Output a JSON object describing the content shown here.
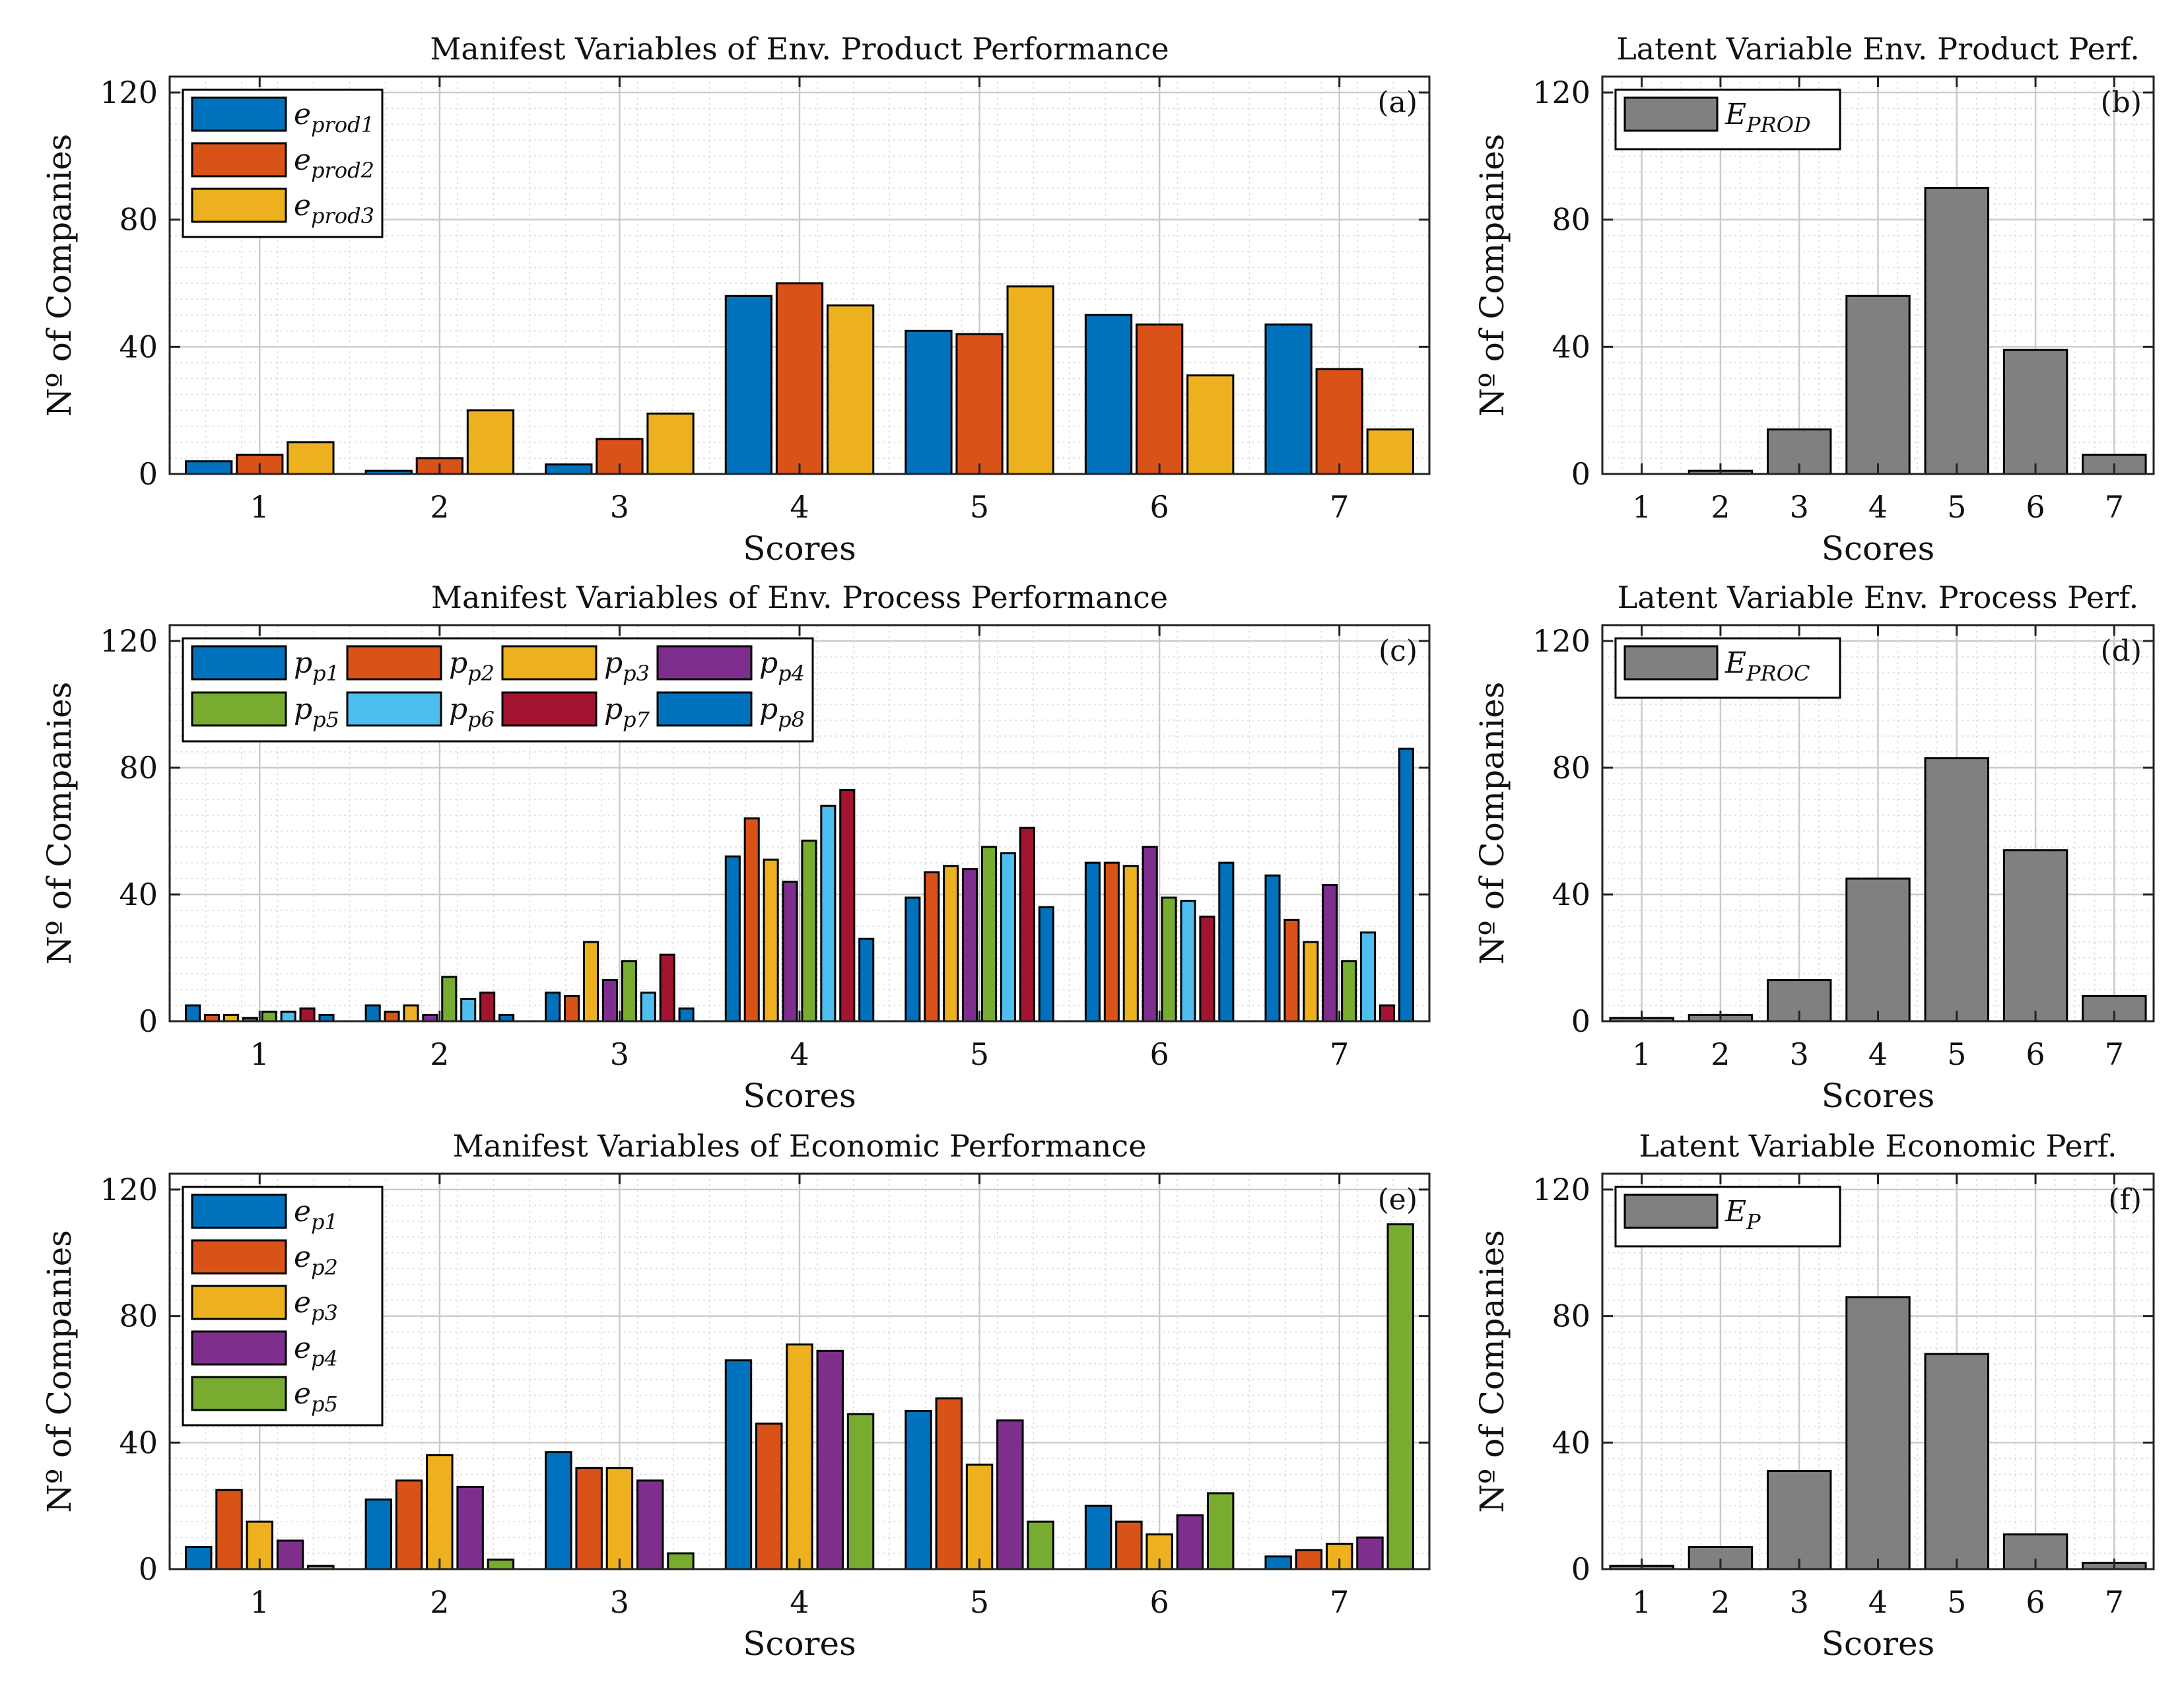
{
  "colors": {
    "blue": "#0072BD",
    "orange": "#D95319",
    "yellow": "#EDB120",
    "purple": "#7E2F8E",
    "green": "#77AC30",
    "cyan": "#4DBEEE",
    "red": "#A2142F",
    "gray": "#808080"
  },
  "chart_data": [
    {
      "id": "a",
      "type": "bar",
      "title": "Manifest Variables of Env. Product Performance",
      "panel_label": "(a)",
      "xlabel": "Scores",
      "ylabel": "Nº of Companies",
      "categories": [
        "1",
        "2",
        "3",
        "4",
        "5",
        "6",
        "7"
      ],
      "yticks": [
        "0",
        "40",
        "80",
        "120"
      ],
      "ylim": [
        0,
        125
      ],
      "legend_columns": 1,
      "series": [
        {
          "name": "e",
          "sub": "prod1",
          "color_key": "blue",
          "values": [
            4,
            1,
            3,
            56,
            45,
            50,
            47
          ]
        },
        {
          "name": "e",
          "sub": "prod2",
          "color_key": "orange",
          "values": [
            6,
            5,
            11,
            60,
            44,
            47,
            33
          ]
        },
        {
          "name": "e",
          "sub": "prod3",
          "color_key": "yellow",
          "values": [
            10,
            20,
            19,
            53,
            59,
            31,
            14
          ]
        }
      ]
    },
    {
      "id": "b",
      "type": "bar",
      "title": "Latent Variable Env. Product Perf.",
      "panel_label": "(b)",
      "xlabel": "Scores",
      "ylabel": "Nº of Companies",
      "categories": [
        "1",
        "2",
        "3",
        "4",
        "5",
        "6",
        "7"
      ],
      "yticks": [
        "0",
        "40",
        "80",
        "120"
      ],
      "ylim": [
        0,
        125
      ],
      "legend_columns": 1,
      "series": [
        {
          "name": "E",
          "sub": "PROD",
          "color_key": "gray",
          "values": [
            0,
            1,
            14,
            56,
            90,
            39,
            6
          ]
        }
      ]
    },
    {
      "id": "c",
      "type": "bar",
      "title": "Manifest Variables of Env. Process Performance",
      "panel_label": "(c)",
      "xlabel": "Scores",
      "ylabel": "Nº of Companies",
      "categories": [
        "1",
        "2",
        "3",
        "4",
        "5",
        "6",
        "7"
      ],
      "yticks": [
        "0",
        "40",
        "80",
        "120"
      ],
      "ylim": [
        0,
        125
      ],
      "legend_columns": 4,
      "series": [
        {
          "name": "p",
          "sub": "p1",
          "color_key": "blue",
          "values": [
            5,
            5,
            9,
            52,
            39,
            50,
            46
          ]
        },
        {
          "name": "p",
          "sub": "p2",
          "color_key": "orange",
          "values": [
            2,
            3,
            8,
            64,
            47,
            50,
            32
          ]
        },
        {
          "name": "p",
          "sub": "p3",
          "color_key": "yellow",
          "values": [
            2,
            5,
            25,
            51,
            49,
            49,
            25
          ]
        },
        {
          "name": "p",
          "sub": "p4",
          "color_key": "purple",
          "values": [
            1,
            2,
            13,
            44,
            48,
            55,
            43
          ]
        },
        {
          "name": "p",
          "sub": "p5",
          "color_key": "green",
          "values": [
            3,
            14,
            19,
            57,
            55,
            39,
            19
          ]
        },
        {
          "name": "p",
          "sub": "p6",
          "color_key": "cyan",
          "values": [
            3,
            7,
            9,
            68,
            53,
            38,
            28
          ]
        },
        {
          "name": "p",
          "sub": "p7",
          "color_key": "red",
          "values": [
            4,
            9,
            21,
            73,
            61,
            33,
            5
          ]
        },
        {
          "name": "p",
          "sub": "p8",
          "color_key": "blue",
          "values": [
            2,
            2,
            4,
            26,
            36,
            50,
            86
          ]
        }
      ]
    },
    {
      "id": "d",
      "type": "bar",
      "title": "Latent Variable Env. Process Perf.",
      "panel_label": "(d)",
      "xlabel": "Scores",
      "ylabel": "Nº of Companies",
      "categories": [
        "1",
        "2",
        "3",
        "4",
        "5",
        "6",
        "7"
      ],
      "yticks": [
        "0",
        "40",
        "80",
        "120"
      ],
      "ylim": [
        0,
        125
      ],
      "legend_columns": 1,
      "series": [
        {
          "name": "E",
          "sub": "PROC",
          "color_key": "gray",
          "values": [
            1,
            2,
            13,
            45,
            83,
            54,
            8
          ]
        }
      ]
    },
    {
      "id": "e",
      "type": "bar",
      "title": "Manifest Variables of Economic Performance",
      "panel_label": "(e)",
      "xlabel": "Scores",
      "ylabel": "Nº of Companies",
      "categories": [
        "1",
        "2",
        "3",
        "4",
        "5",
        "6",
        "7"
      ],
      "yticks": [
        "0",
        "40",
        "80",
        "120"
      ],
      "ylim": [
        0,
        125
      ],
      "legend_columns": 1,
      "series": [
        {
          "name": "e",
          "sub": "p1",
          "color_key": "blue",
          "values": [
            7,
            22,
            37,
            66,
            50,
            20,
            4
          ]
        },
        {
          "name": "e",
          "sub": "p2",
          "color_key": "orange",
          "values": [
            25,
            28,
            32,
            46,
            54,
            15,
            6
          ]
        },
        {
          "name": "e",
          "sub": "p3",
          "color_key": "yellow",
          "values": [
            15,
            36,
            32,
            71,
            33,
            11,
            8
          ]
        },
        {
          "name": "e",
          "sub": "p4",
          "color_key": "purple",
          "values": [
            9,
            26,
            28,
            69,
            47,
            17,
            10
          ]
        },
        {
          "name": "e",
          "sub": "p5",
          "color_key": "green",
          "values": [
            1,
            3,
            5,
            49,
            15,
            24,
            109
          ]
        }
      ]
    },
    {
      "id": "f",
      "type": "bar",
      "title": "Latent Variable Economic Perf.",
      "panel_label": "(f)",
      "xlabel": "Scores",
      "ylabel": "Nº of Companies",
      "categories": [
        "1",
        "2",
        "3",
        "4",
        "5",
        "6",
        "7"
      ],
      "yticks": [
        "0",
        "40",
        "80",
        "120"
      ],
      "ylim": [
        0,
        125
      ],
      "legend_columns": 1,
      "series": [
        {
          "name": "E",
          "sub": "P",
          "color_key": "gray",
          "values": [
            1,
            7,
            31,
            86,
            68,
            11,
            2
          ]
        }
      ]
    }
  ]
}
